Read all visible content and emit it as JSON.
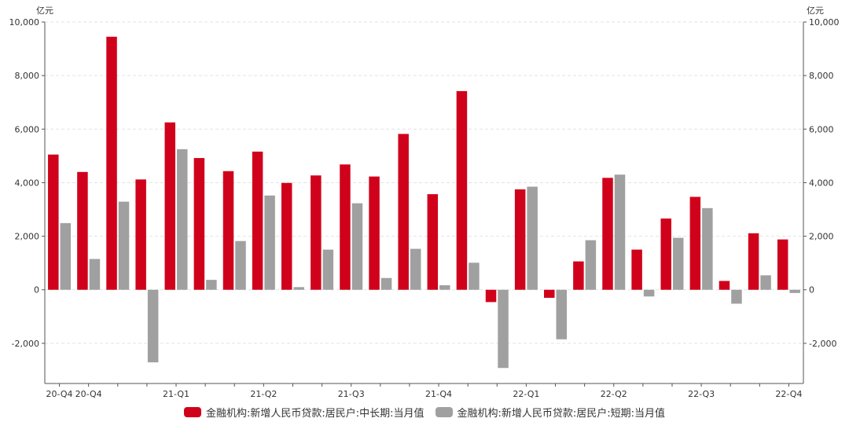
{
  "chart_data": {
    "type": "bar",
    "categories": [
      "20-Q4a",
      "20-Q4b",
      "p3",
      "p4",
      "21-Q1",
      "p6",
      "p7",
      "21-Q2",
      "p9",
      "p10",
      "21-Q3",
      "p12",
      "p13",
      "21-Q4",
      "p15",
      "p16",
      "22-Q1",
      "p18",
      "p19",
      "22-Q2",
      "p21",
      "p22",
      "22-Q3",
      "p24",
      "p25",
      "22-Q4"
    ],
    "x_tick_labels": [
      "20-Q4",
      "20-Q4",
      "",
      "",
      "21-Q1",
      "",
      "",
      "21-Q2",
      "",
      "",
      "21-Q3",
      "",
      "",
      "21-Q4",
      "",
      "",
      "22-Q1",
      "",
      "",
      "22-Q2",
      "",
      "",
      "22-Q3",
      "",
      "",
      "22-Q4"
    ],
    "series": [
      {
        "name": "金融机构:新增人民币贷款:居民户:中长期:当月值",
        "color": "#d0021b",
        "values": [
          5050,
          4400,
          9450,
          4120,
          6250,
          4920,
          4430,
          5160,
          3990,
          4270,
          4680,
          4230,
          5820,
          3570,
          7420,
          -460,
          3750,
          -300,
          1060,
          4180,
          1500,
          2660,
          3470,
          330,
          2110,
          1880
        ]
      },
      {
        "name": "金融机构:新增人民币贷款:居民户:短期:当月值",
        "color": "#a0a0a0",
        "values": [
          2490,
          1150,
          3290,
          -2710,
          5250,
          370,
          1820,
          3520,
          100,
          1500,
          3230,
          440,
          1530,
          170,
          1010,
          -2920,
          3850,
          -1850,
          1850,
          4300,
          -250,
          1940,
          3050,
          -520,
          540,
          -120
        ]
      }
    ],
    "y_unit_left": "亿元",
    "y_unit_right": "亿元",
    "ylim": [
      -3500,
      10000
    ],
    "y_ticks": [
      -2000,
      0,
      2000,
      4000,
      6000,
      8000,
      10000
    ],
    "y_tick_labels": [
      "-2,000",
      "0",
      "2,000",
      "4,000",
      "6,000",
      "8,000",
      "10,000"
    ],
    "grid": true,
    "legend_position": "bottom-center"
  }
}
